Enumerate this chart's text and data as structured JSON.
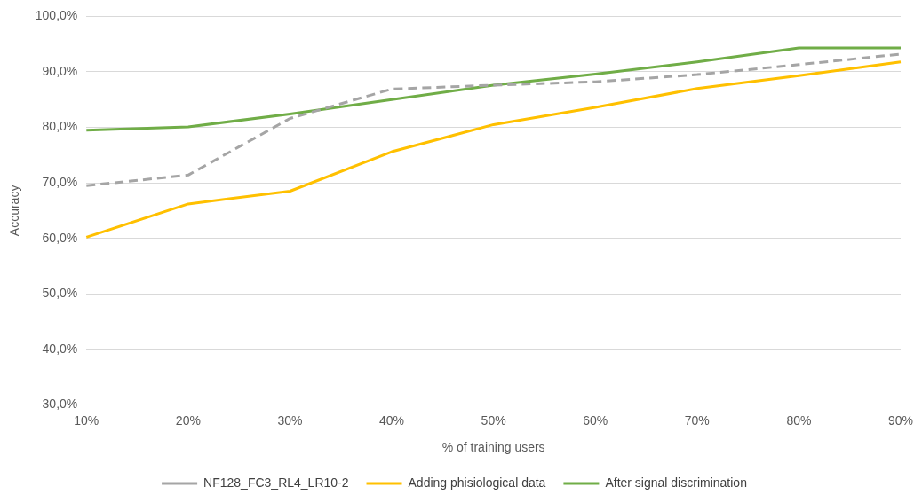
{
  "chart_data": {
    "type": "line",
    "xlabel": "% of training users",
    "ylabel": "Accuracy",
    "categories": [
      "10%",
      "20%",
      "30%",
      "40%",
      "50%",
      "60%",
      "70%",
      "80%",
      "90%"
    ],
    "series": [
      {
        "name": "NF128_FC3_RL4_LR10-2",
        "color": "#a5a5a5",
        "line_style": "dashed",
        "values": [
          69.5,
          71.4,
          81.6,
          86.9,
          87.6,
          88.2,
          89.5,
          91.3,
          93.2
        ]
      },
      {
        "name": "Adding phisiological data",
        "color": "#ffc000",
        "line_style": "solid",
        "values": [
          60.2,
          66.2,
          68.5,
          75.6,
          80.5,
          83.6,
          87.0,
          89.3,
          91.8
        ]
      },
      {
        "name": "After signal discrimination",
        "color": "#70ad47",
        "line_style": "solid",
        "values": [
          79.5,
          80.1,
          82.4,
          85.0,
          87.6,
          89.6,
          91.8,
          94.3,
          94.3
        ]
      }
    ],
    "ylim": [
      30,
      100
    ],
    "yticks": [
      {
        "value": 30,
        "label": "30,0%"
      },
      {
        "value": 40,
        "label": "40,0%"
      },
      {
        "value": 50,
        "label": "50,0%"
      },
      {
        "value": 60,
        "label": "60,0%"
      },
      {
        "value": 70,
        "label": "70,0%"
      },
      {
        "value": 80,
        "label": "80,0%"
      },
      {
        "value": 90,
        "label": "90,0%"
      },
      {
        "value": 100,
        "label": "100,0%"
      }
    ],
    "grid": "y",
    "legend": "bottom",
    "marker": "none"
  }
}
